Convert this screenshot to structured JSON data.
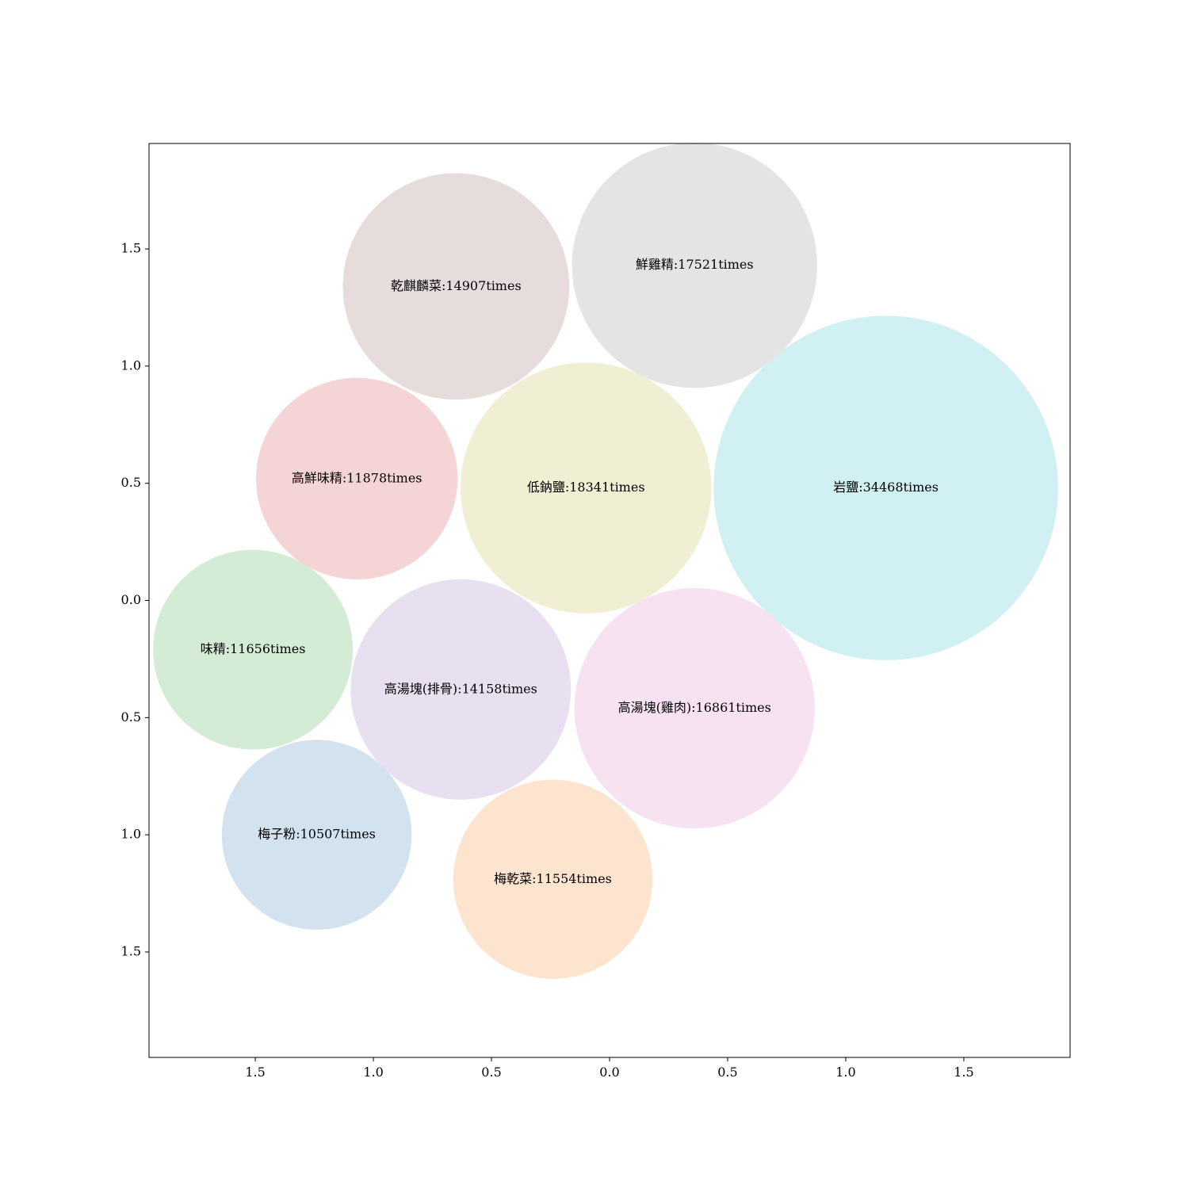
{
  "chart_data": {
    "type": "bubble",
    "title": "",
    "xlabel": "",
    "ylabel": "",
    "xlim": [
      -1.95,
      1.95
    ],
    "ylim": [
      -1.95,
      1.95
    ],
    "grid": false,
    "x_ticks": [
      {
        "value": -1.5,
        "label": "1.5"
      },
      {
        "value": -1.0,
        "label": "1.0"
      },
      {
        "value": -0.5,
        "label": "0.5"
      },
      {
        "value": 0.0,
        "label": "0.0"
      },
      {
        "value": 0.5,
        "label": "0.5"
      },
      {
        "value": 1.0,
        "label": "1.0"
      },
      {
        "value": 1.5,
        "label": "1.5"
      }
    ],
    "y_ticks": [
      {
        "value": 1.5,
        "label": "1.5"
      },
      {
        "value": 1.0,
        "label": "1.0"
      },
      {
        "value": 0.5,
        "label": "0.5"
      },
      {
        "value": 0.0,
        "label": "0.0"
      },
      {
        "value": -0.5,
        "label": "0.5"
      },
      {
        "value": -1.0,
        "label": "1.0"
      },
      {
        "value": -1.5,
        "label": "1.5"
      }
    ],
    "bubbles": [
      {
        "name": "岩鹽",
        "value": 34468,
        "label": "岩鹽:34468times",
        "x": 1.17,
        "y": 0.48,
        "r": 0.735,
        "color": "#d1f0f3"
      },
      {
        "name": "低鈉鹽",
        "value": 18341,
        "label": "低鈉鹽:18341times",
        "x": -0.1,
        "y": 0.48,
        "r": 0.535,
        "color": "#f0efd4"
      },
      {
        "name": "鮮雞精",
        "value": 17521,
        "label": "鮮雞精:17521times",
        "x": 0.36,
        "y": 1.43,
        "r": 0.523,
        "color": "#e4e4e4"
      },
      {
        "name": "高湯塊(雞肉)",
        "value": 16861,
        "label": "高湯塊(雞肉):16861times",
        "x": 0.36,
        "y": -0.46,
        "r": 0.513,
        "color": "#f7e2f2"
      },
      {
        "name": "乾麒麟菜",
        "value": 14907,
        "label": "乾麒麟菜:14907times",
        "x": -0.65,
        "y": 1.34,
        "r": 0.483,
        "color": "#e6dcdb"
      },
      {
        "name": "高湯塊(排骨)",
        "value": 14158,
        "label": "高湯塊(排骨):14158times",
        "x": -0.63,
        "y": -0.38,
        "r": 0.47,
        "color": "#e8e0f0"
      },
      {
        "name": "高鮮味精",
        "value": 11878,
        "label": "高鮮味精:11878times",
        "x": -1.07,
        "y": 0.52,
        "r": 0.43,
        "color": "#f5d4d6"
      },
      {
        "name": "味精",
        "value": 11656,
        "label": "味精:11656times",
        "x": -1.51,
        "y": -0.21,
        "r": 0.426,
        "color": "#d4ebd5"
      },
      {
        "name": "梅乾菜",
        "value": 11554,
        "label": "梅乾菜:11554times",
        "x": -0.24,
        "y": -1.19,
        "r": 0.425,
        "color": "#fde4cf"
      },
      {
        "name": "梅子粉",
        "value": 10507,
        "label": "梅子粉:10507times",
        "x": -1.24,
        "y": -1.0,
        "r": 0.405,
        "color": "#d2e2ee"
      }
    ]
  }
}
